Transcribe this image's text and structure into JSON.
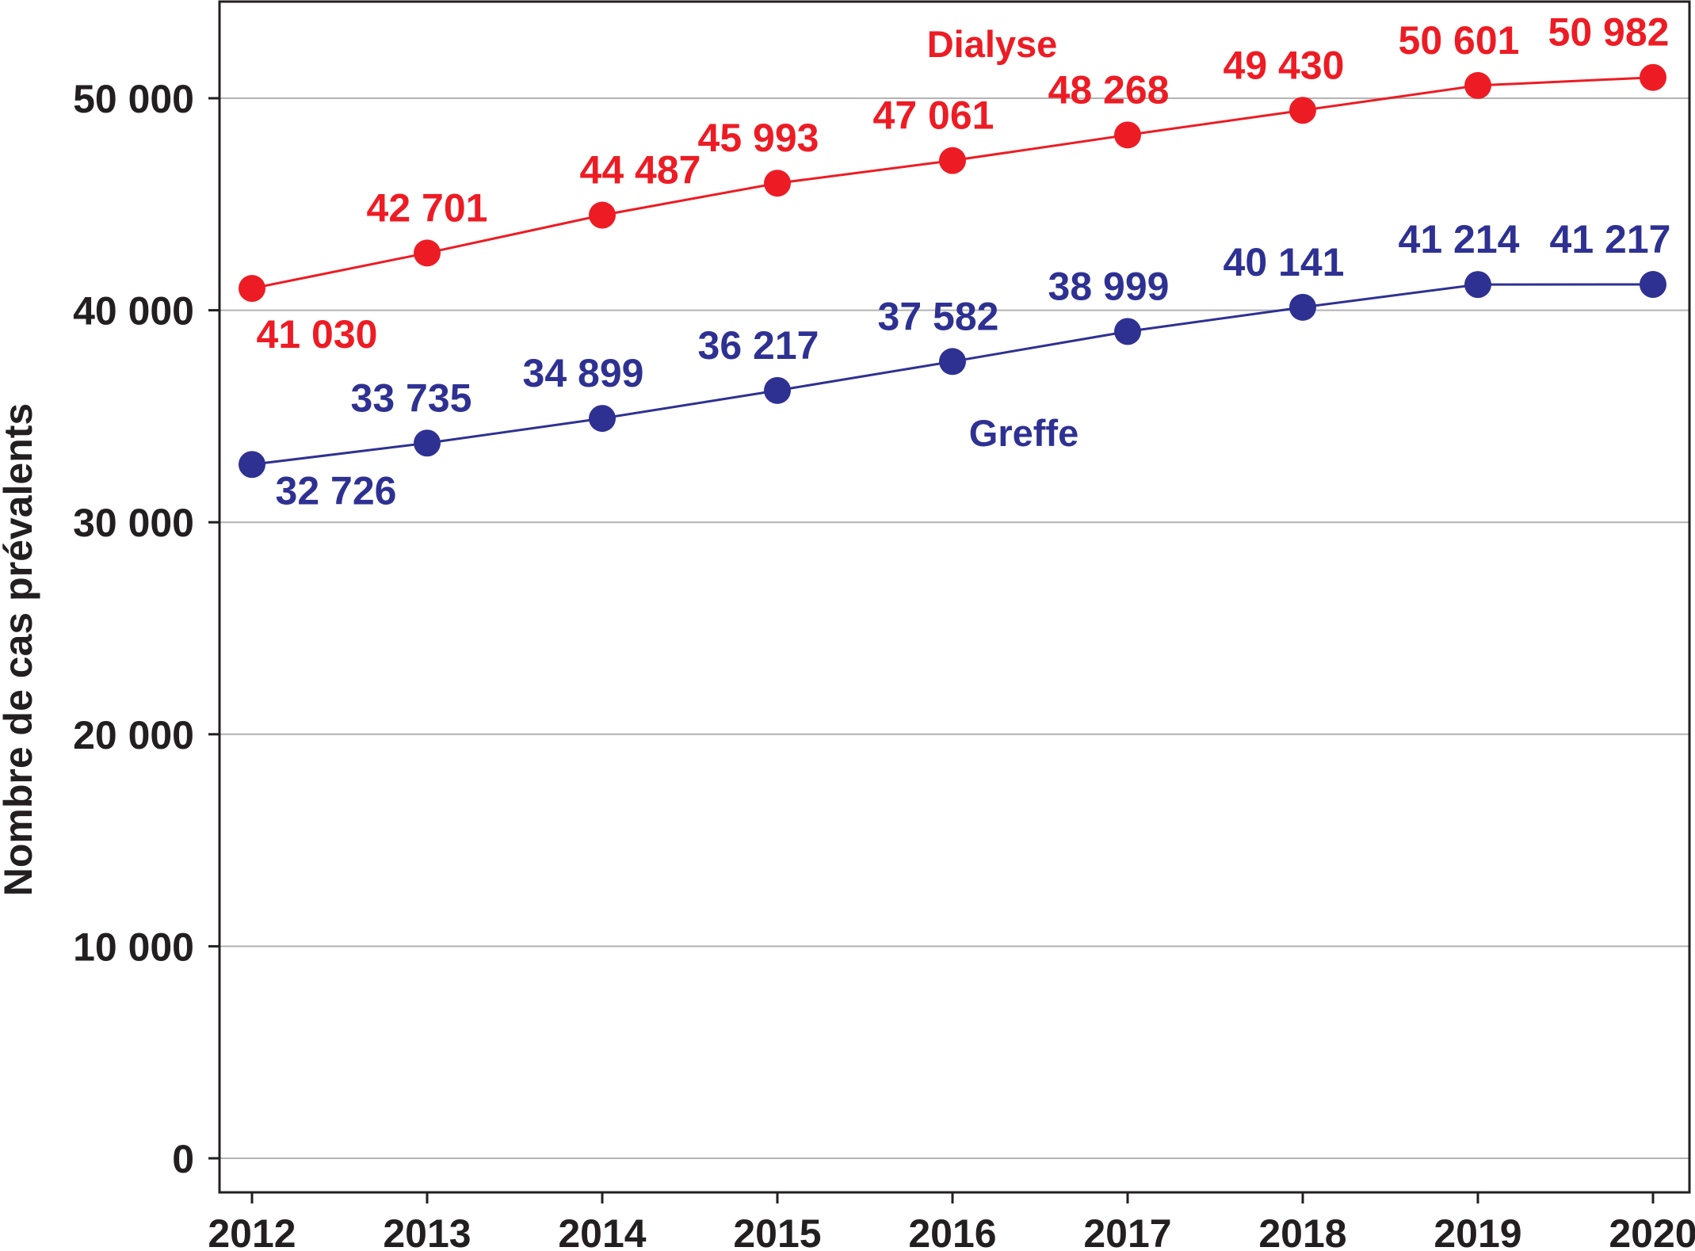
{
  "chart_data": {
    "type": "line",
    "title": "",
    "xlabel": "",
    "ylabel": "Nombre de cas prévalents",
    "ylim": [
      0,
      55000
    ],
    "y_ticks": [
      0,
      10000,
      20000,
      30000,
      40000,
      50000
    ],
    "y_tick_labels": [
      "0",
      "10 000",
      "20 000",
      "30 000",
      "40 000",
      "50 000"
    ],
    "categories": [
      "2012",
      "2013",
      "2014",
      "2015",
      "2016",
      "2017",
      "2018",
      "2019",
      "2020"
    ],
    "grid": "horizontal",
    "legend": "none",
    "series": [
      {
        "name": "Dialyse",
        "color": "#ed1c24",
        "values": [
          41030,
          42701,
          44487,
          45993,
          47061,
          48268,
          49430,
          50601,
          50982
        ],
        "labels": [
          "41 030",
          "42 701",
          "44 487",
          "45 993",
          "47 061",
          "48 268",
          "49 430",
          "50 601",
          "50 982"
        ]
      },
      {
        "name": "Greffe",
        "color": "#2e3192",
        "values": [
          32726,
          33735,
          34899,
          36217,
          37582,
          38999,
          40141,
          41214,
          41217
        ],
        "labels": [
          "32 726",
          "33 735",
          "34 899",
          "36 217",
          "37 582",
          "38 999",
          "40 141",
          "41 214",
          "41 217"
        ]
      }
    ]
  }
}
